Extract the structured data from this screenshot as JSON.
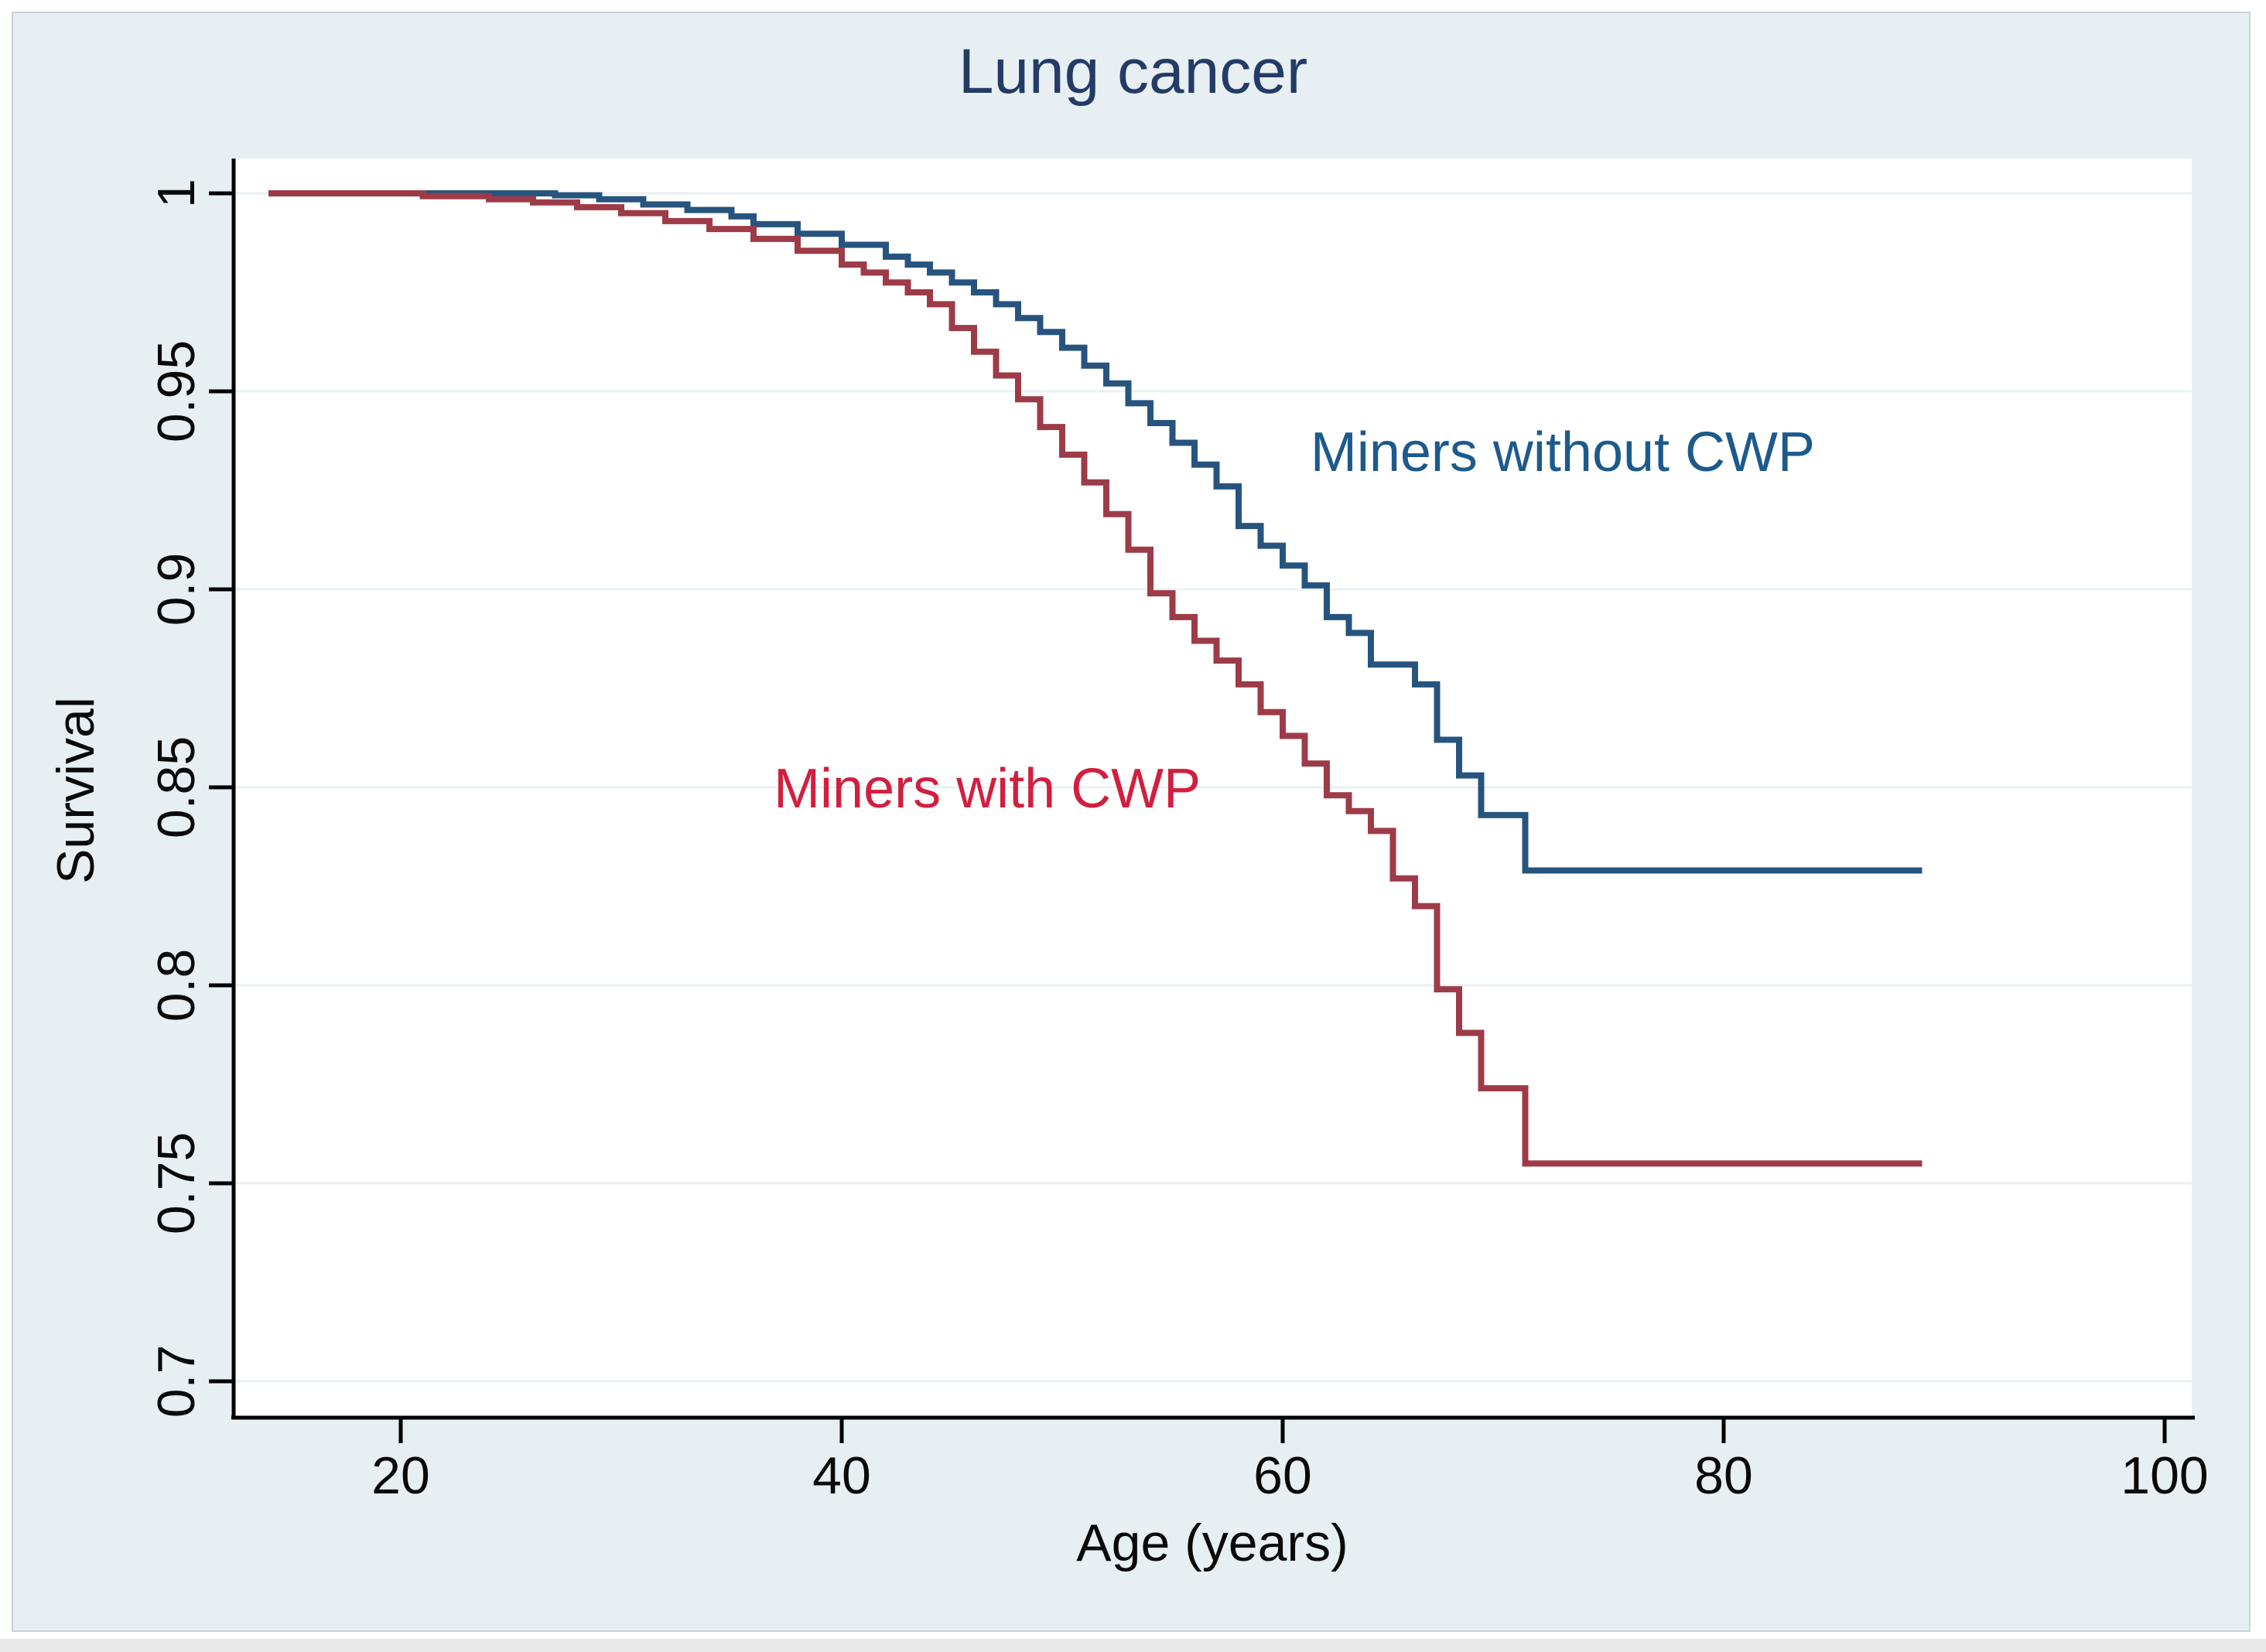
{
  "chart_data": {
    "type": "line",
    "subtype": "kaplan-meier-step-survival",
    "title": "Lung cancer",
    "xlabel": "Age (years)",
    "ylabel": "Survival",
    "x_ticks": [
      20,
      40,
      60,
      80,
      100
    ],
    "x_tick_labels": [
      "20",
      "40",
      "60",
      "80",
      "100"
    ],
    "y_ticks": [
      1,
      0.95,
      0.9,
      0.85,
      0.8,
      0.75,
      0.7
    ],
    "y_tick_labels": [
      "1",
      "0.95",
      "0.9",
      "0.85",
      "0.8",
      "0.75",
      "0.7"
    ],
    "xlim": [
      12.4,
      101.4
    ],
    "ylim": [
      0.691,
      1.009
    ],
    "grid": "horizontal-only",
    "legend_position": "inline-annotations",
    "colors": {
      "panel_background": "#e8eff2",
      "plot_background": "#ffffff",
      "gridline": "#e9f1f4",
      "axis": "#000000",
      "title": "#233b66",
      "without_cwp_curve": "#27547e",
      "without_cwp_label": "#1d5a8c",
      "with_cwp_curve": "#9e3b48",
      "with_cwp_label": "#d11f3f"
    },
    "series": [
      {
        "name": "Miners without CWP",
        "color": "#27547e",
        "start_age": 14,
        "start_survival": 1.0,
        "end_age": 89,
        "final_survival": 0.829,
        "steps": [
          [
            27,
            0.9995
          ],
          [
            29,
            0.9985
          ],
          [
            31,
            0.9972
          ],
          [
            33,
            0.9958
          ],
          [
            35,
            0.9942
          ],
          [
            36,
            0.9922
          ],
          [
            38,
            0.9898
          ],
          [
            40,
            0.987
          ],
          [
            42,
            0.984
          ],
          [
            43,
            0.982
          ],
          [
            44,
            0.98
          ],
          [
            45,
            0.9775
          ],
          [
            46,
            0.975
          ],
          [
            47,
            0.972
          ],
          [
            48,
            0.9685
          ],
          [
            49,
            0.965
          ],
          [
            50,
            0.961
          ],
          [
            51,
            0.9565
          ],
          [
            52,
            0.952
          ],
          [
            53,
            0.947
          ],
          [
            54,
            0.942
          ],
          [
            55,
            0.937
          ],
          [
            56,
            0.9315
          ],
          [
            57,
            0.926
          ],
          [
            58,
            0.916
          ],
          [
            59,
            0.911
          ],
          [
            60,
            0.906
          ],
          [
            61,
            0.901
          ],
          [
            62,
            0.893
          ],
          [
            63,
            0.889
          ],
          [
            64,
            0.881
          ],
          [
            66,
            0.876
          ],
          [
            67,
            0.862
          ],
          [
            68,
            0.853
          ],
          [
            69,
            0.843
          ],
          [
            71,
            0.829
          ]
        ]
      },
      {
        "name": "Miners with CWP",
        "color": "#9e3b48",
        "start_age": 14,
        "start_survival": 1.0,
        "end_age": 89,
        "final_survival": 0.755,
        "steps": [
          [
            21,
            0.9993
          ],
          [
            24,
            0.9985
          ],
          [
            26,
            0.9977
          ],
          [
            28,
            0.9965
          ],
          [
            30,
            0.995
          ],
          [
            32,
            0.993
          ],
          [
            34,
            0.991
          ],
          [
            36,
            0.9885
          ],
          [
            38,
            0.9855
          ],
          [
            40,
            0.982
          ],
          [
            41,
            0.98
          ],
          [
            42,
            0.9775
          ],
          [
            43,
            0.975
          ],
          [
            44,
            0.972
          ],
          [
            45,
            0.966
          ],
          [
            46,
            0.96
          ],
          [
            47,
            0.954
          ],
          [
            48,
            0.948
          ],
          [
            49,
            0.941
          ],
          [
            50,
            0.934
          ],
          [
            51,
            0.927
          ],
          [
            52,
            0.919
          ],
          [
            53,
            0.91
          ],
          [
            54,
            0.899
          ],
          [
            55,
            0.893
          ],
          [
            56,
            0.887
          ],
          [
            57,
            0.882
          ],
          [
            58,
            0.876
          ],
          [
            59,
            0.869
          ],
          [
            60,
            0.863
          ],
          [
            61,
            0.856
          ],
          [
            62,
            0.848
          ],
          [
            63,
            0.844
          ],
          [
            64,
            0.839
          ],
          [
            65,
            0.827
          ],
          [
            66,
            0.82
          ],
          [
            67,
            0.799
          ],
          [
            68,
            0.788
          ],
          [
            69,
            0.774
          ],
          [
            71,
            0.755
          ]
        ]
      }
    ],
    "annotations": [
      {
        "name": "label-miners-without-cwp",
        "text": "Miners without CWP",
        "color": "#1d5a8c",
        "age": 72.7,
        "survival": 0.9346
      },
      {
        "name": "label-miners-with-cwp",
        "text": "Miners with CWP",
        "color": "#d11f3f",
        "age": 46.6,
        "survival": 0.8496
      }
    ]
  }
}
